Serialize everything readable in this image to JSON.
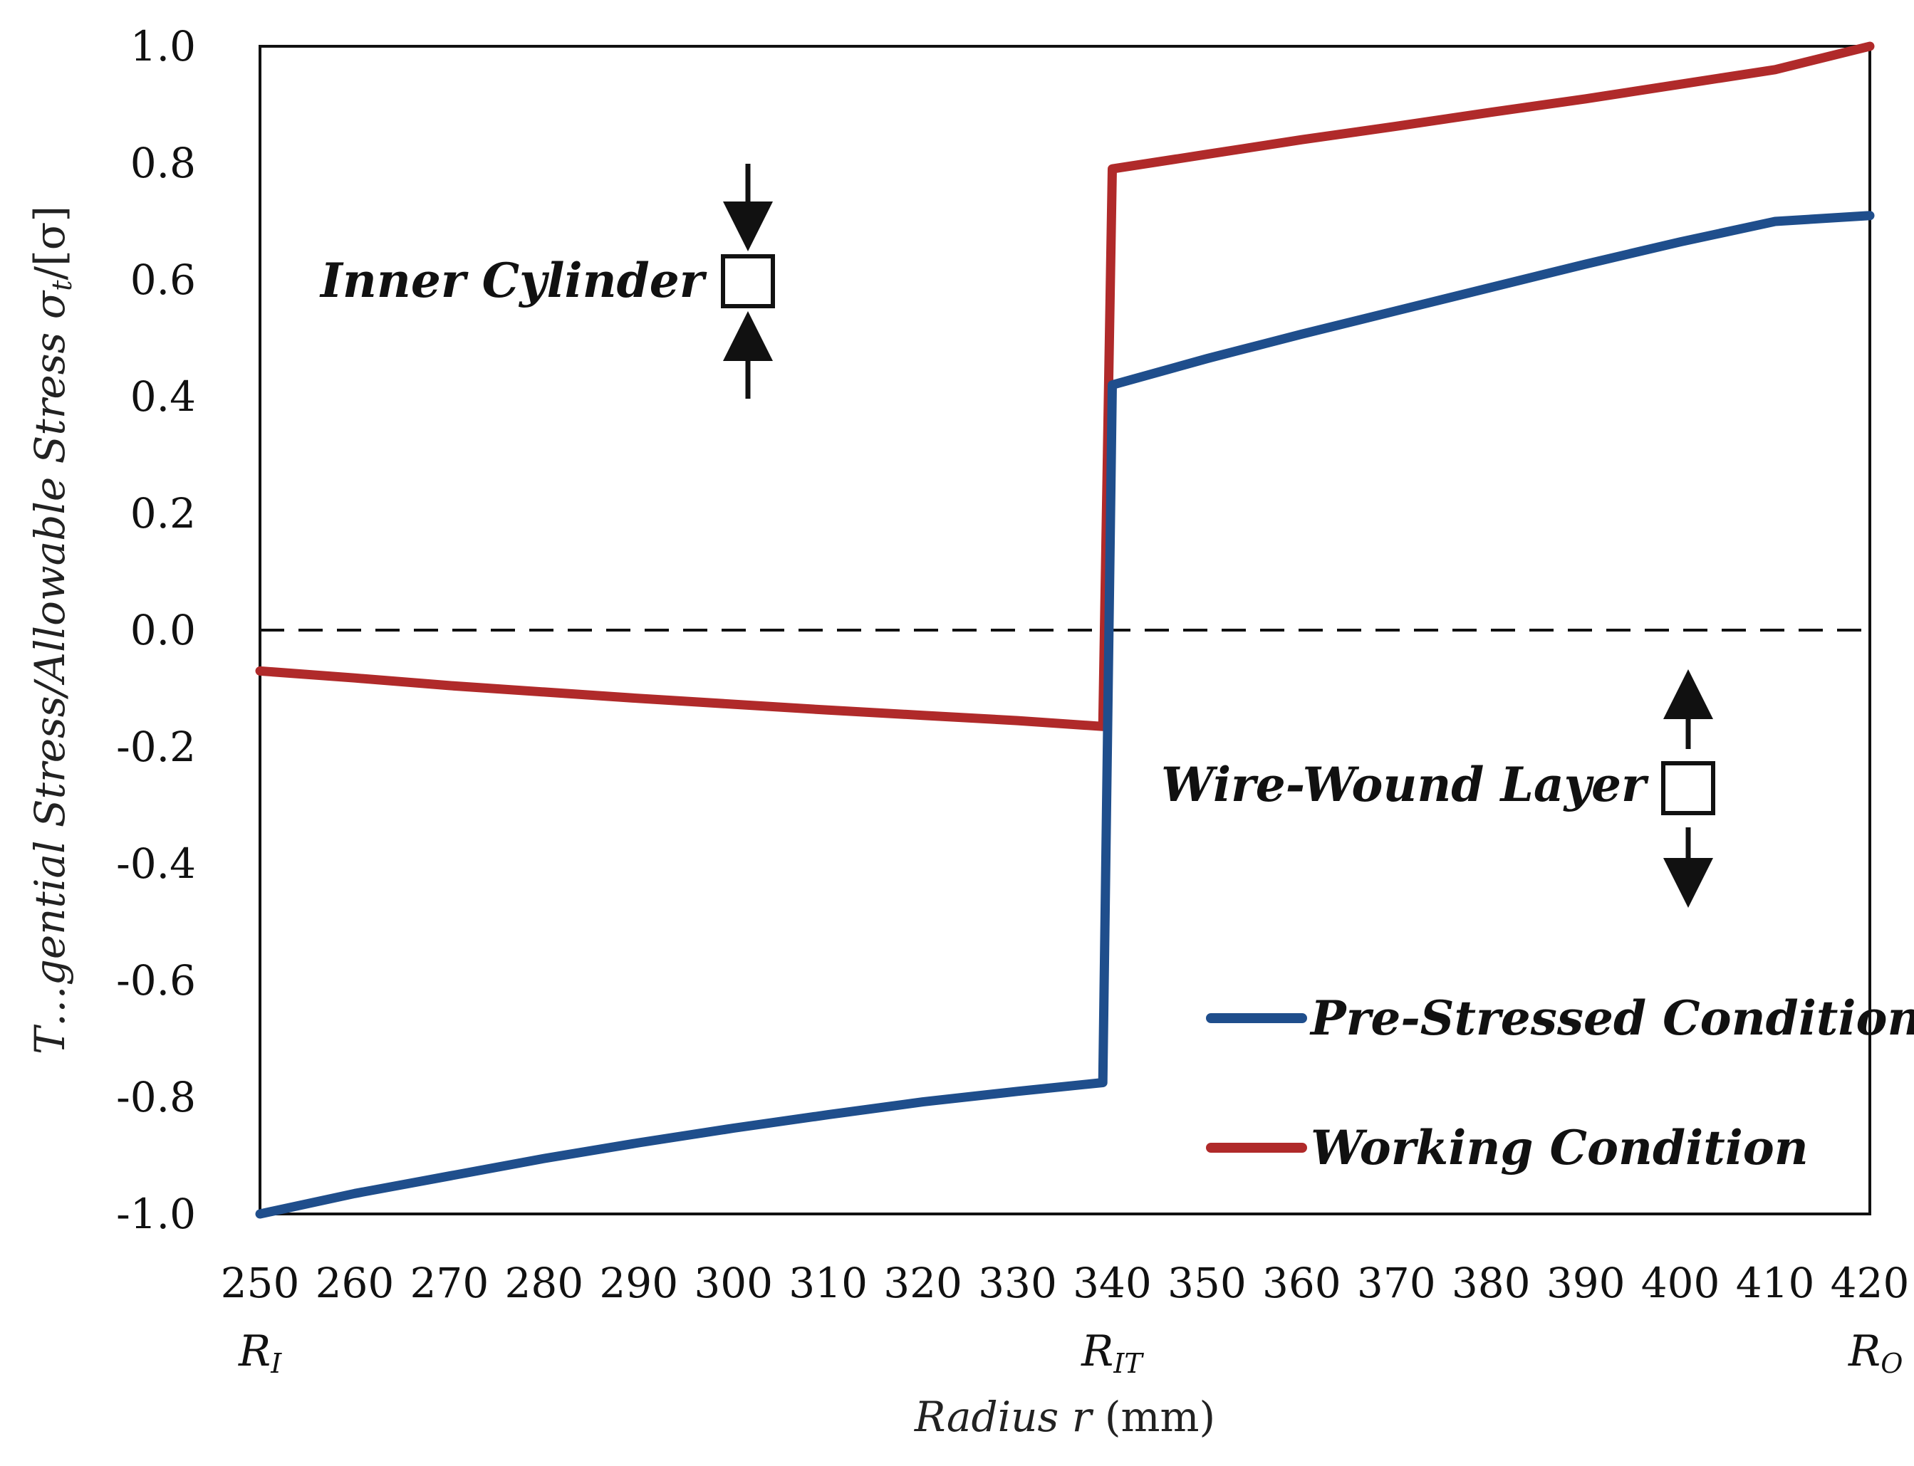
{
  "chart_data": {
    "type": "line",
    "xlabel_pre": "Radius ",
    "xlabel_var": "r",
    "xlabel_unit": " (mm)",
    "ylabel_text": "T…gential Stress/Allowable Stress σ",
    "ylabel_sub": "t",
    "ylabel_end": "/[σ]",
    "xlim": [
      250,
      420
    ],
    "ylim": [
      -1.0,
      1.0
    ],
    "x_ticks": [
      "250",
      "260",
      "270",
      "280",
      "290",
      "300",
      "310",
      "320",
      "330",
      "340",
      "350",
      "360",
      "370",
      "380",
      "390",
      "400",
      "410",
      "420"
    ],
    "y_ticks": [
      "1.0",
      "0.8",
      "0.6",
      "0.4",
      "0.2",
      "0.0",
      "-0.2",
      "-0.4",
      "-0.6",
      "-0.8",
      "-1.0"
    ],
    "radius_markers": [
      {
        "value": 250,
        "main": "R",
        "sub": "I"
      },
      {
        "value": 339,
        "main": "R",
        "sub": "IT"
      },
      {
        "value": 420,
        "main": "R",
        "sub": "O"
      }
    ],
    "reference_line": {
      "y": 0.0,
      "style": "dashed"
    },
    "series": [
      {
        "name": "Pre-Stressed Condition",
        "color": "#1f4e8c",
        "x": [
          250,
          260,
          270,
          280,
          290,
          300,
          310,
          320,
          330,
          339,
          340,
          350,
          360,
          370,
          380,
          390,
          400,
          410,
          420
        ],
        "y": [
          -1.0,
          -0.965,
          -0.935,
          -0.905,
          -0.878,
          -0.853,
          -0.83,
          -0.808,
          -0.79,
          -0.775,
          0.42,
          0.465,
          0.507,
          0.547,
          0.587,
          0.627,
          0.665,
          0.7,
          0.71
        ]
      },
      {
        "name": "Working Condition",
        "color": "#b02a2a",
        "x": [
          250,
          260,
          270,
          280,
          290,
          300,
          310,
          320,
          330,
          339,
          340,
          350,
          360,
          370,
          380,
          390,
          400,
          410,
          420
        ],
        "y": [
          -0.07,
          -0.082,
          -0.095,
          -0.106,
          -0.117,
          -0.127,
          -0.137,
          -0.146,
          -0.155,
          -0.165,
          0.79,
          0.815,
          0.84,
          0.863,
          0.887,
          0.91,
          0.935,
          0.96,
          1.0
        ]
      }
    ],
    "annotations": [
      {
        "text": "Inner Cylinder",
        "stress": "compression"
      },
      {
        "text": "Wire-Wound Layer",
        "stress": "tension"
      }
    ],
    "legend": {
      "placement": "bottom-right"
    }
  }
}
